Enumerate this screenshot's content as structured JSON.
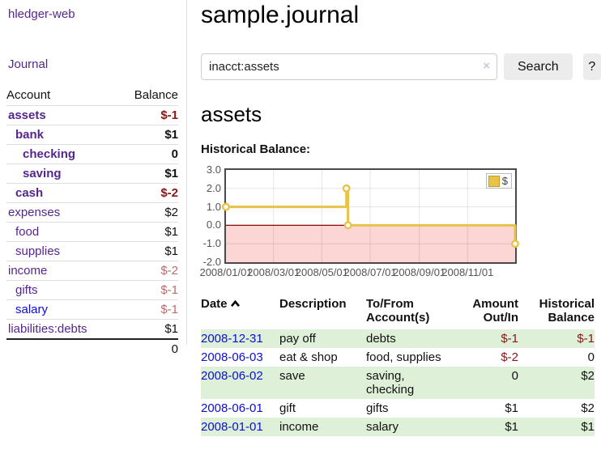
{
  "colors": {
    "link_purple": "#55268f",
    "link_blue": "#0d0dd6",
    "negative_strong": "#8c1616",
    "negative_soft": "#bf6b6b",
    "row_green": "#dff0d8",
    "chart_line_gold": "#e8c349",
    "chart_negative_fill": "#fcd5d5",
    "chart_zero_line": "#8b0000",
    "chart_border": "#4a4a4a"
  },
  "sidebar": {
    "app_title": "hledger-web",
    "nav": [
      {
        "label": "Journal"
      }
    ],
    "accounts_table": {
      "headers": {
        "account": "Account",
        "balance": "Balance"
      },
      "rows": [
        {
          "account": "assets",
          "level": 1,
          "balance": "$-1",
          "matched": true,
          "link": "purple"
        },
        {
          "account": "bank",
          "level": 2,
          "balance": "$1",
          "matched": true,
          "link": "purple"
        },
        {
          "account": "checking",
          "level": 3,
          "balance": "0",
          "matched": true,
          "link": "purple"
        },
        {
          "account": "saving",
          "level": 3,
          "balance": "$1",
          "matched": true,
          "link": "purple"
        },
        {
          "account": "cash",
          "level": 2,
          "balance": "$-2",
          "matched": true,
          "link": "purple"
        },
        {
          "account": "expenses",
          "level": 1,
          "balance": "$2",
          "matched": false,
          "link": "purple"
        },
        {
          "account": "food",
          "level": 2,
          "balance": "$1",
          "matched": false,
          "link": "purple"
        },
        {
          "account": "supplies",
          "level": 2,
          "balance": "$1",
          "matched": false,
          "link": "purple"
        },
        {
          "account": "income",
          "level": 1,
          "balance": "$-2",
          "matched": false,
          "link": "purple"
        },
        {
          "account": "gifts",
          "level": 2,
          "balance": "$-1",
          "matched": false,
          "link": "purple"
        },
        {
          "account": "salary",
          "level": 2,
          "balance": "$-1",
          "matched": false,
          "link": "blue"
        },
        {
          "account": "liabilities:debts",
          "level": 1,
          "balance": "$1",
          "matched": false,
          "link": "purple"
        }
      ],
      "total": "0"
    }
  },
  "header": {
    "title": "sample.journal"
  },
  "search": {
    "value": "inacct:assets",
    "clear_label": "×",
    "button_label": "Search",
    "help_label": "?"
  },
  "account_page": {
    "title": "assets",
    "chart_label": "Historical Balance:"
  },
  "chart_data": {
    "type": "line",
    "style": "step",
    "series": [
      {
        "name": "$",
        "points": [
          [
            "2008-01-01",
            1.0
          ],
          [
            "2008-06-01",
            2.0
          ],
          [
            "2008-06-03",
            0.0
          ],
          [
            "2008-12-31",
            -1.0
          ]
        ]
      }
    ],
    "ylim": [
      -2.0,
      3.0
    ],
    "yticks": [
      3.0,
      2.0,
      1.0,
      0.0,
      -1.0,
      -2.0
    ],
    "xticks": [
      "2008/01/01",
      "2008/03/01",
      "2008/05/01",
      "2008/07/01",
      "2008/09/01",
      "2008/11/01"
    ],
    "xrange": [
      "2008-01-01",
      "2008-12-31"
    ],
    "legend": {
      "position": "top-right",
      "entries": [
        "$"
      ]
    },
    "grid": true,
    "negative_region_shaded": true,
    "zero_line": true
  },
  "register_table": {
    "headers": {
      "date": "Date",
      "description": "Description",
      "accounts": "To/From Account(s)",
      "amount": "Amount Out/In",
      "balance": "Historical Balance"
    },
    "rows": [
      {
        "date": "2008-12-31",
        "description": "pay off",
        "accounts": "debts",
        "amount": "$-1",
        "balance": "$-1"
      },
      {
        "date": "2008-06-03",
        "description": "eat & shop",
        "accounts": "food, supplies",
        "amount": "$-2",
        "balance": "0"
      },
      {
        "date": "2008-06-02",
        "description": "save",
        "accounts": "saving, checking",
        "amount": "0",
        "balance": "$2"
      },
      {
        "date": "2008-06-01",
        "description": "gift",
        "accounts": "gifts",
        "amount": "$1",
        "balance": "$2"
      },
      {
        "date": "2008-01-01",
        "description": "income",
        "accounts": "salary",
        "amount": "$1",
        "balance": "$1"
      }
    ]
  }
}
